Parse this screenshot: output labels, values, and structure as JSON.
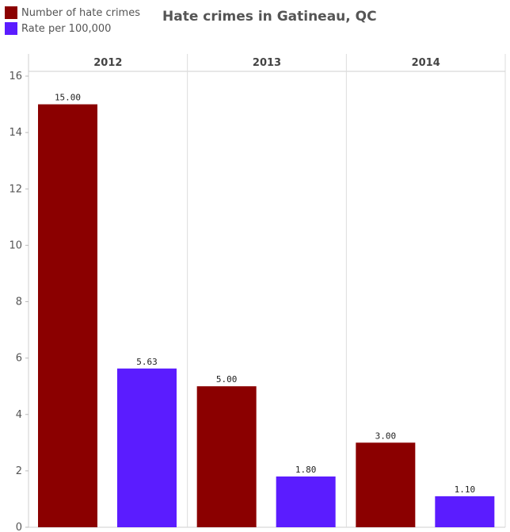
{
  "chart_data": {
    "type": "bar",
    "title": "Hate crimes in Gatineau, QC",
    "categories": [
      "2012",
      "2013",
      "2014"
    ],
    "series": [
      {
        "name": "Number of hate crimes",
        "values": [
          15.0,
          5.0,
          3.0
        ],
        "labels": [
          "15.00",
          "5.00",
          "3.00"
        ],
        "color": "#8b0000"
      },
      {
        "name": "Rate per 100,000",
        "values": [
          5.63,
          1.8,
          1.1
        ],
        "labels": [
          "5.63",
          "1.80",
          "1.10"
        ],
        "color": "#5b1cff"
      }
    ],
    "ylim": [
      0,
      16
    ],
    "yticks": [
      "0",
      "2",
      "4",
      "6",
      "8",
      "10",
      "12",
      "14",
      "16"
    ],
    "xlabel": "",
    "ylabel": "",
    "grid": false,
    "legend_position": "top-left"
  }
}
